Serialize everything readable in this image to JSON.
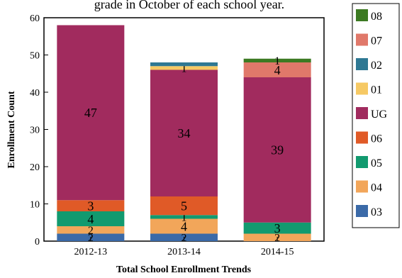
{
  "chart_data": {
    "type": "bar",
    "stacked": true,
    "title": "grade in October of each school year.",
    "xlabel": "Total School Enrollment Trends",
    "ylabel": "Enrollment Count",
    "ylim": [
      0,
      60
    ],
    "yticks": [
      0,
      10,
      20,
      30,
      40,
      50,
      60
    ],
    "categories": [
      "2012-13",
      "2013-14",
      "2014-15"
    ],
    "grid": false,
    "legend_position": "right",
    "series": [
      {
        "name": "03",
        "color": "#3b6aa8",
        "values": [
          2,
          2,
          0
        ],
        "labels": [
          "2",
          "2",
          ""
        ]
      },
      {
        "name": "04",
        "color": "#f2a65a",
        "values": [
          2,
          4,
          2
        ],
        "labels": [
          "2",
          "4",
          "2"
        ]
      },
      {
        "name": "05",
        "color": "#129a6f",
        "values": [
          4,
          1,
          3
        ],
        "labels": [
          "4",
          "1",
          "3"
        ]
      },
      {
        "name": "06",
        "color": "#e05a27",
        "values": [
          3,
          5,
          0
        ],
        "labels": [
          "3",
          "5",
          ""
        ]
      },
      {
        "name": "UG",
        "color": "#a12b5e",
        "values": [
          47,
          34,
          39
        ],
        "labels": [
          "47",
          "34",
          "39"
        ]
      },
      {
        "name": "01",
        "color": "#f6c964",
        "values": [
          0,
          1,
          0
        ],
        "labels": [
          "",
          "1",
          ""
        ]
      },
      {
        "name": "02",
        "color": "#2e7893",
        "values": [
          0,
          1,
          0
        ],
        "labels": [
          "",
          "",
          ""
        ]
      },
      {
        "name": "07",
        "color": "#e0786a",
        "values": [
          0,
          0,
          4
        ],
        "labels": [
          "",
          "",
          "4"
        ]
      },
      {
        "name": "08",
        "color": "#3c7a22",
        "values": [
          0,
          0,
          1
        ],
        "labels": [
          "",
          "",
          "1"
        ]
      }
    ],
    "legend_order": [
      "08",
      "07",
      "02",
      "01",
      "UG",
      "06",
      "05",
      "04",
      "03"
    ]
  }
}
